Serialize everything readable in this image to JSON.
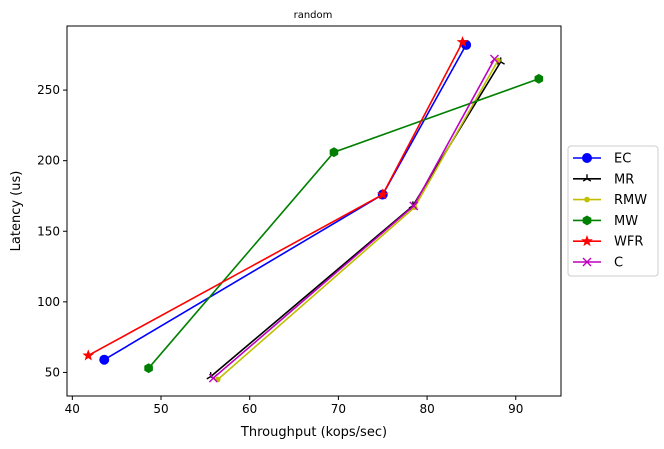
{
  "chart_data": {
    "type": "line",
    "title": "random",
    "xlabel": "Throughput (kops/sec)",
    "ylabel": "Latency (us)",
    "xlim": [
      39.4,
      95.1
    ],
    "ylim": [
      33.3,
      295.4
    ],
    "xticks": [
      40,
      50,
      60,
      70,
      80,
      90
    ],
    "yticks": [
      50,
      100,
      150,
      200,
      250
    ],
    "grid": false,
    "legend_position": "center-right",
    "series": [
      {
        "name": "EC",
        "color": "#0000ff",
        "marker": "circle",
        "x": [
          43.6,
          75.0,
          84.4
        ],
        "y": [
          59,
          176,
          282
        ]
      },
      {
        "name": "MR",
        "color": "#000000",
        "marker": "tri_up",
        "x": [
          55.6,
          78.4,
          88.3
        ],
        "y": [
          47,
          168,
          270
        ]
      },
      {
        "name": "RMW",
        "color": "#bfbf00",
        "marker": "point",
        "x": [
          56.4,
          78.6,
          88.0
        ],
        "y": [
          45,
          167,
          271
        ]
      },
      {
        "name": "MW",
        "color": "#008000",
        "marker": "hexagon",
        "x": [
          48.6,
          69.5,
          92.6
        ],
        "y": [
          53,
          206,
          258
        ]
      },
      {
        "name": "WFR",
        "color": "#ff0000",
        "marker": "star",
        "x": [
          41.8,
          75.0,
          84.0
        ],
        "y": [
          62,
          176,
          284
        ]
      },
      {
        "name": "C",
        "color": "#bf00bf",
        "marker": "x",
        "x": [
          55.9,
          78.5,
          87.6
        ],
        "y": [
          46,
          168,
          272
        ]
      }
    ]
  }
}
